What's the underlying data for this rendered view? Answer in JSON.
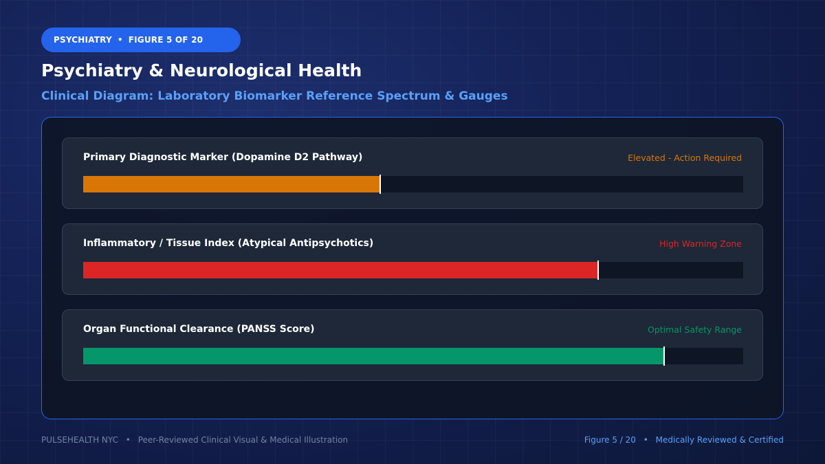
{
  "badge": {
    "category": "PSYCHIATRY",
    "separator": "•",
    "figure": "FIGURE 5 OF 20"
  },
  "header": {
    "title": "Psychiatry & Neurological Health",
    "subtitle": "Clinical Diagram: Laboratory Biomarker Reference Spectrum & Gauges"
  },
  "gauges": [
    {
      "label": "Primary Diagnostic Marker (Dopamine D2 Pathway)",
      "status": "Elevated - Action Required",
      "level": 0.45,
      "color": "#d97706"
    },
    {
      "label": "Inflammatory / Tissue Index (Atypical Antipsychotics)",
      "status": "High Warning Zone",
      "level": 0.78,
      "color": "#dc2626"
    },
    {
      "label": "Organ Functional Clearance (PANSS Score)",
      "status": "Optimal Safety Range",
      "level": 0.88,
      "color": "#059669"
    }
  ],
  "footer": {
    "brand": "PULSEHEALTH NYC",
    "separator": "•",
    "tagline": "Peer-Reviewed Clinical Visual & Medical Illustration",
    "figure": "Figure 5 / 20",
    "certification": "Medically Reviewed & Certified"
  }
}
